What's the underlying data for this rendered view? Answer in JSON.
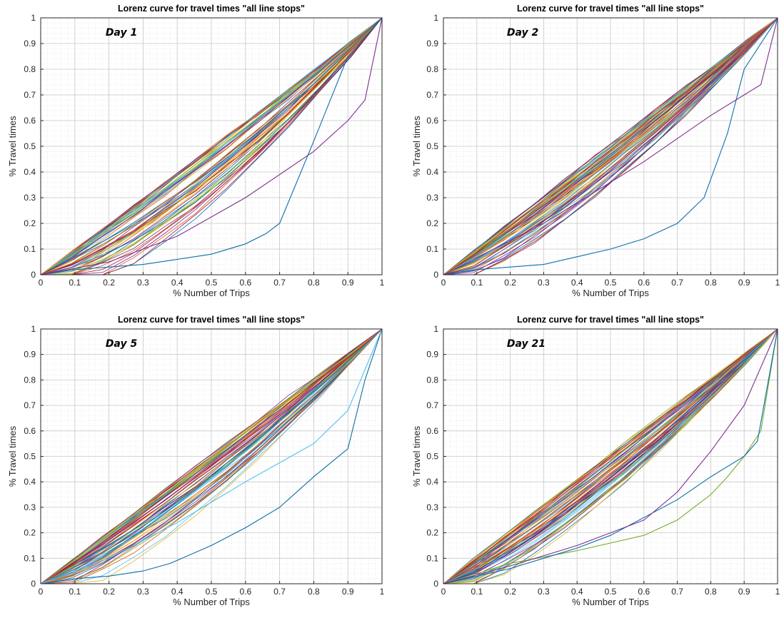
{
  "chart_data": [
    {
      "type": "line",
      "title": "Lorenz curve for travel times \"all line stops\"",
      "xlabel": "% Number of Trips",
      "ylabel": "% Travel times",
      "annotation": "Day 1",
      "xlim": [
        0,
        1
      ],
      "ylim": [
        0,
        1
      ],
      "xticks": [
        "0",
        "0.1",
        "0.2",
        "0.3",
        "0.4",
        "0.5",
        "0.6",
        "0.7",
        "0.8",
        "0.9",
        "1"
      ],
      "yticks": [
        "0",
        "0.1",
        "0.2",
        "0.3",
        "0.4",
        "0.5",
        "0.6",
        "0.7",
        "0.8",
        "0.9",
        "1"
      ],
      "grid": true,
      "minor_grid": true,
      "series_count": 60,
      "series_outliers": [
        {
          "color": "#0b6fa8",
          "x": [
            0,
            0.1,
            0.2,
            0.3,
            0.4,
            0.5,
            0.6,
            0.66,
            0.7,
            0.8,
            0.9,
            1
          ],
          "y": [
            0,
            0.02,
            0.03,
            0.04,
            0.06,
            0.08,
            0.12,
            0.16,
            0.2,
            0.52,
            0.85,
            1
          ]
        },
        {
          "color": "#7e2f8e",
          "x": [
            0,
            0.2,
            0.4,
            0.6,
            0.8,
            0.9,
            0.95,
            1
          ],
          "y": [
            0,
            0.05,
            0.15,
            0.3,
            0.48,
            0.6,
            0.68,
            1
          ]
        }
      ],
      "bundle": {
        "curvature_min": 0.0,
        "curvature_max": 0.5
      }
    },
    {
      "type": "line",
      "title": "Lorenz curve for travel times \"all line stops\"",
      "xlabel": "% Number of Trips",
      "ylabel": "% Travel times",
      "annotation": "Day 2",
      "xlim": [
        0,
        1
      ],
      "ylim": [
        0,
        1
      ],
      "xticks": [
        "0",
        "0.1",
        "0.2",
        "0.3",
        "0.4",
        "0.5",
        "0.6",
        "0.7",
        "0.8",
        "0.9",
        "1"
      ],
      "yticks": [
        "0",
        "0.1",
        "0.2",
        "0.3",
        "0.4",
        "0.5",
        "0.6",
        "0.7",
        "0.8",
        "0.9",
        "1"
      ],
      "grid": true,
      "minor_grid": true,
      "series_count": 60,
      "series_outliers": [
        {
          "color": "#0b6fa8",
          "x": [
            0,
            0.1,
            0.2,
            0.3,
            0.4,
            0.5,
            0.6,
            0.7,
            0.78,
            0.85,
            0.9,
            1
          ],
          "y": [
            0,
            0.02,
            0.03,
            0.04,
            0.07,
            0.1,
            0.14,
            0.2,
            0.3,
            0.55,
            0.8,
            1
          ]
        },
        {
          "color": "#7e2f8e",
          "x": [
            0,
            0.3,
            0.6,
            0.8,
            0.9,
            0.95,
            1
          ],
          "y": [
            0,
            0.2,
            0.44,
            0.62,
            0.7,
            0.74,
            1
          ]
        }
      ],
      "bundle": {
        "curvature_min": -0.02,
        "curvature_max": 0.35
      }
    },
    {
      "type": "line",
      "title": "Lorenz curve for travel times \"all line stops\"",
      "xlabel": "% Number of Trips",
      "ylabel": "% Travel times",
      "annotation": "Day 5",
      "xlim": [
        0,
        1
      ],
      "ylim": [
        0,
        1
      ],
      "xticks": [
        "0",
        "0.1",
        "0.2",
        "0.3",
        "0.4",
        "0.5",
        "0.6",
        "0.7",
        "0.8",
        "0.9",
        "1"
      ],
      "yticks": [
        "0",
        "0.1",
        "0.2",
        "0.3",
        "0.4",
        "0.5",
        "0.6",
        "0.7",
        "0.8",
        "0.9",
        "1"
      ],
      "grid": true,
      "minor_grid": true,
      "series_count": 60,
      "series_outliers": [
        {
          "color": "#0b6fa8",
          "x": [
            0,
            0.1,
            0.2,
            0.3,
            0.38,
            0.5,
            0.6,
            0.7,
            0.8,
            0.9,
            0.95,
            1
          ],
          "y": [
            0,
            0.02,
            0.03,
            0.05,
            0.08,
            0.15,
            0.22,
            0.3,
            0.42,
            0.53,
            0.8,
            1
          ]
        },
        {
          "color": "#4dbeee",
          "x": [
            0,
            0.2,
            0.4,
            0.6,
            0.8,
            0.9,
            1
          ],
          "y": [
            0,
            0.1,
            0.24,
            0.4,
            0.55,
            0.68,
            1
          ]
        }
      ],
      "bundle": {
        "curvature_min": -0.03,
        "curvature_max": 0.4
      }
    },
    {
      "type": "line",
      "title": "Lorenz curve for travel times \"all line stops\"",
      "xlabel": "% Number of Trips",
      "ylabel": "% Travel times",
      "annotation": "Day 21",
      "xlim": [
        0,
        1
      ],
      "ylim": [
        0,
        1
      ],
      "xticks": [
        "0",
        "0.1",
        "0.2",
        "0.3",
        "0.4",
        "0.5",
        "0.6",
        "0.7",
        "0.8",
        "0.9",
        "1"
      ],
      "yticks": [
        "0",
        "0.1",
        "0.2",
        "0.3",
        "0.4",
        "0.5",
        "0.6",
        "0.7",
        "0.8",
        "0.9",
        "1"
      ],
      "grid": true,
      "minor_grid": true,
      "series_count": 60,
      "series_outliers": [
        {
          "color": "#77ac30",
          "x": [
            0,
            0.2,
            0.4,
            0.6,
            0.7,
            0.8,
            0.85,
            0.9,
            0.95,
            1
          ],
          "y": [
            0,
            0.08,
            0.13,
            0.19,
            0.25,
            0.35,
            0.42,
            0.5,
            0.6,
            1
          ]
        },
        {
          "color": "#0b6fa8",
          "x": [
            0,
            0.1,
            0.2,
            0.3,
            0.4,
            0.5,
            0.6,
            0.7,
            0.8,
            0.9,
            0.94,
            1
          ],
          "y": [
            0,
            0.03,
            0.06,
            0.1,
            0.14,
            0.19,
            0.26,
            0.33,
            0.42,
            0.5,
            0.56,
            1
          ]
        },
        {
          "color": "#7e2f8e",
          "x": [
            0,
            0.2,
            0.4,
            0.6,
            0.7,
            0.8,
            0.9,
            1
          ],
          "y": [
            0,
            0.07,
            0.15,
            0.25,
            0.36,
            0.52,
            0.7,
            1
          ]
        }
      ],
      "bundle": {
        "curvature_min": -0.05,
        "curvature_max": 0.35
      }
    }
  ]
}
